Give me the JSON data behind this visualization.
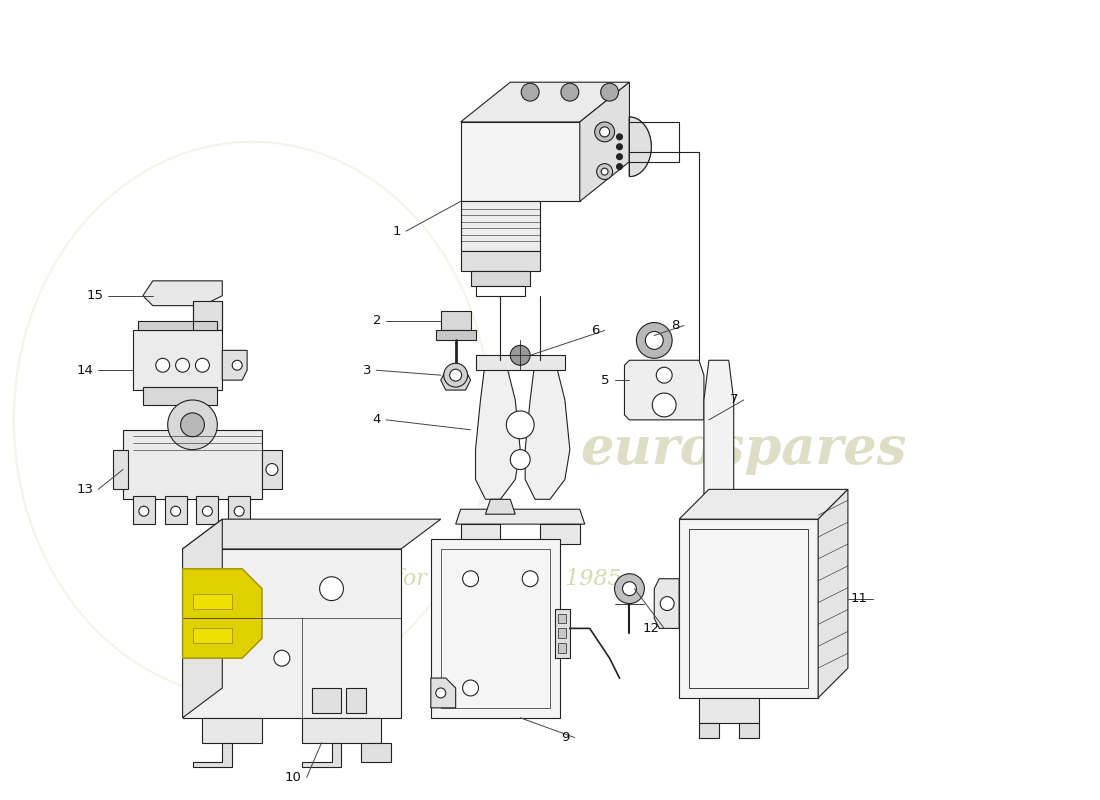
{
  "bg_color": "#ffffff",
  "line_color": "#222222",
  "wm_main": "#c8c8a0",
  "wm_sub": "#b8c890",
  "fig_w": 11.0,
  "fig_h": 8.0,
  "dpi": 100
}
